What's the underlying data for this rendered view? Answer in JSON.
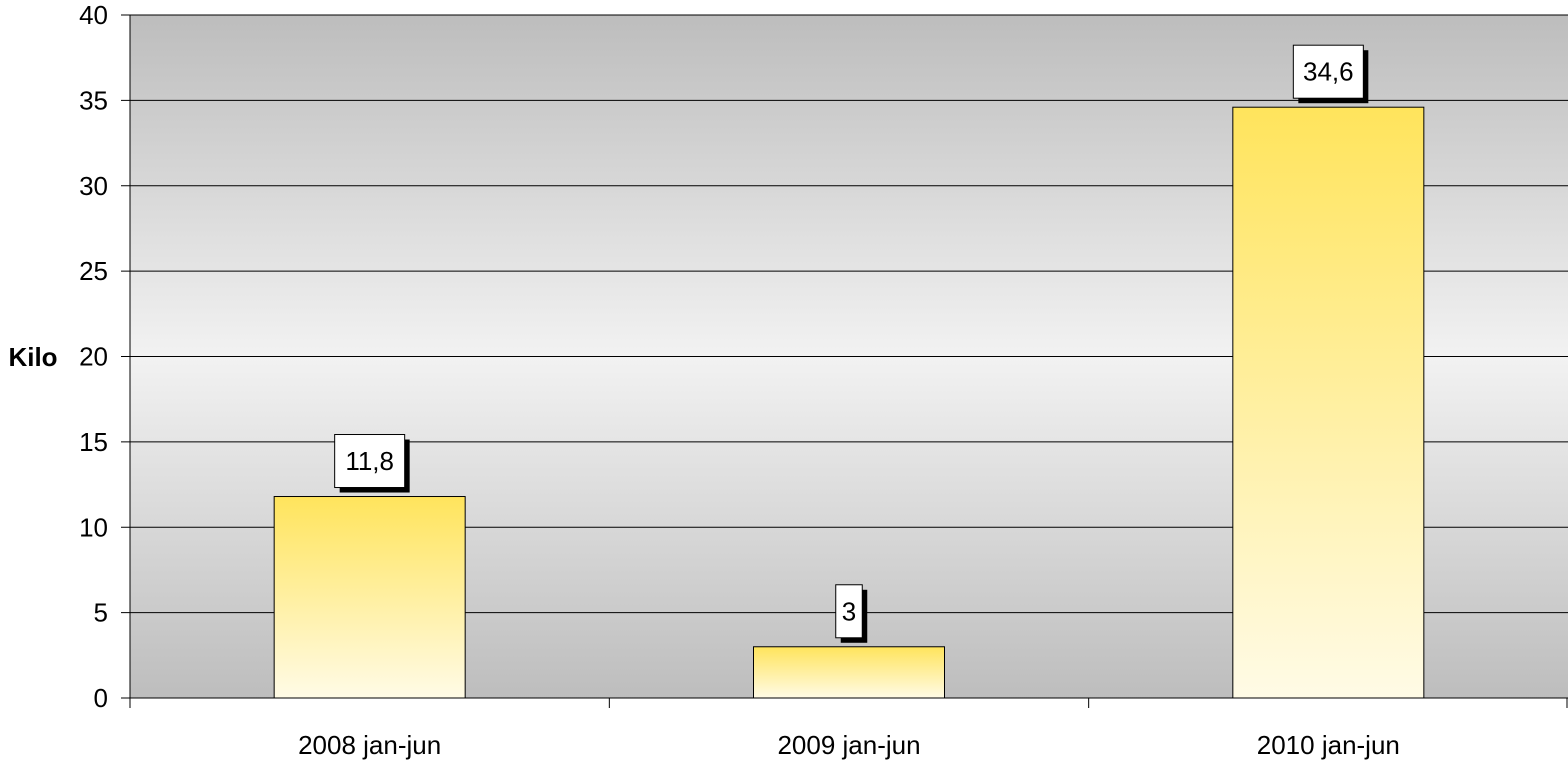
{
  "chart_data": {
    "type": "bar",
    "title": "",
    "xlabel": "",
    "ylabel": "Kilo",
    "categories": [
      "2008 jan-jun",
      "2009 jan-jun",
      "2010 jan-jun"
    ],
    "values": [
      11.8,
      3,
      34.6
    ],
    "data_labels": [
      "11,8",
      "3",
      "34,6"
    ],
    "ylim": [
      0,
      40
    ],
    "yticks": [
      0,
      5,
      10,
      15,
      20,
      25,
      30,
      35,
      40
    ],
    "grid": true,
    "legend": "none",
    "colors": {
      "bar_top": "#FFE45C",
      "bar_bottom": "#FFFBE6",
      "plot_edge": "#BDBDBD",
      "plot_center": "#F2F2F2"
    }
  }
}
